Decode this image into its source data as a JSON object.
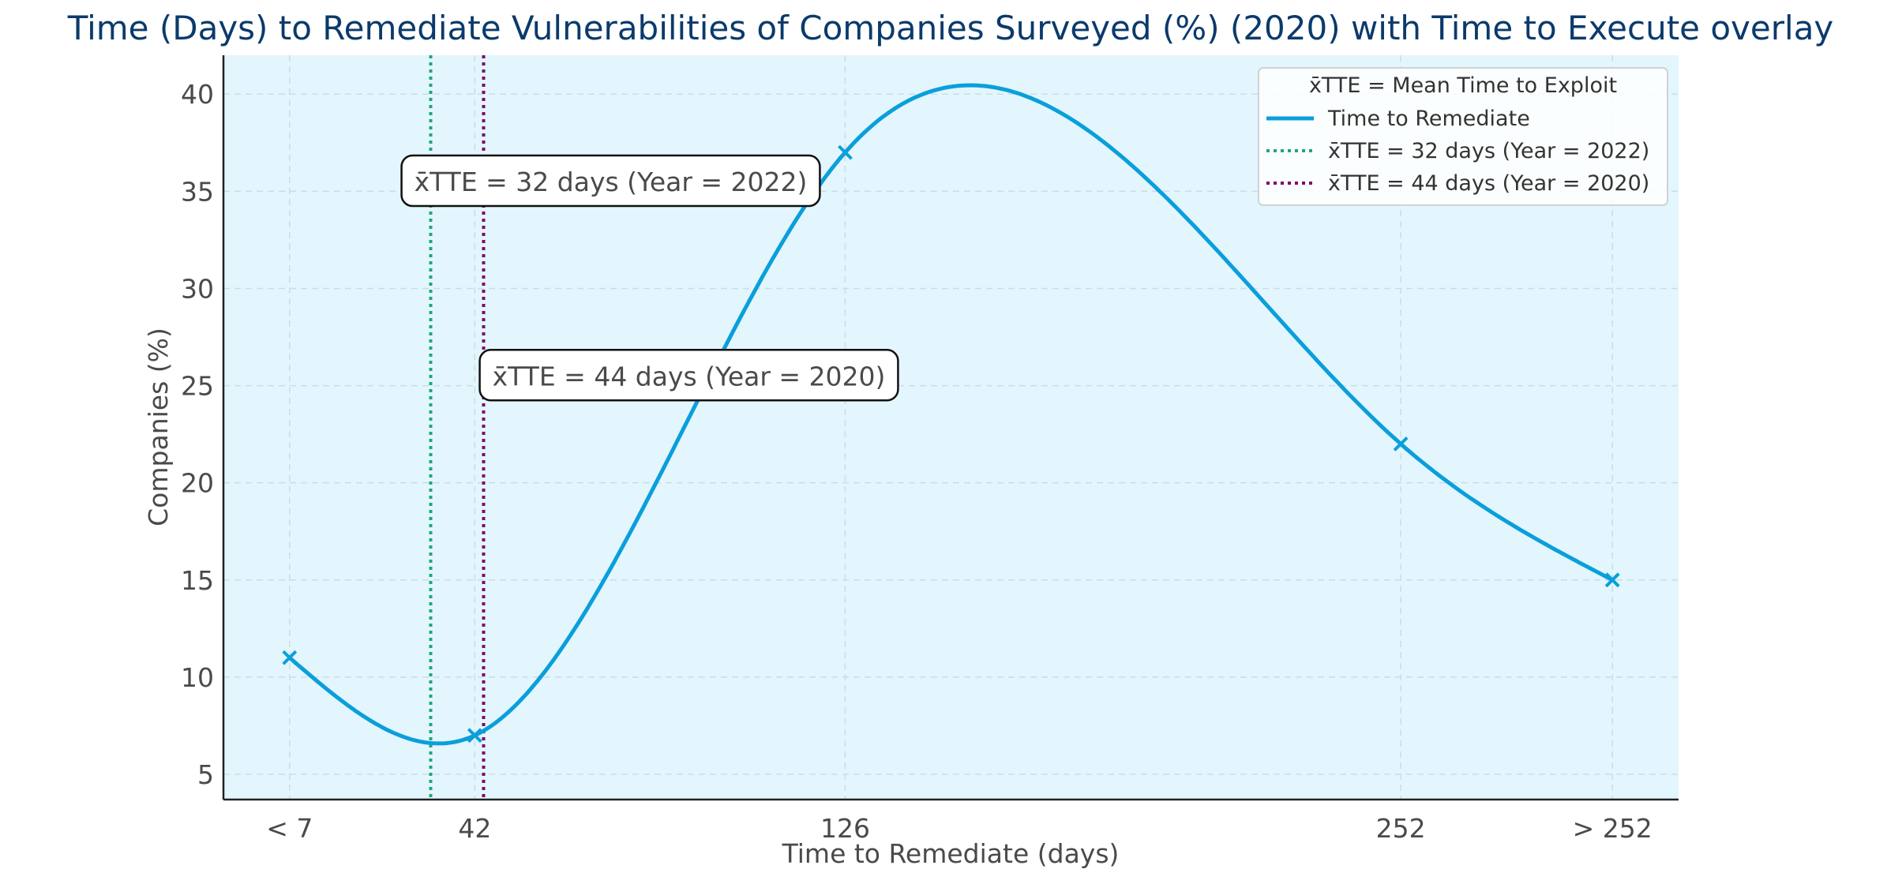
{
  "chart_data": {
    "type": "line",
    "title": "Time (Days) to Remediate Vulnerabilities of Companies Surveyed (%) (2020) with Time to Execute overlay",
    "xlabel": "Time to Remediate (days)",
    "ylabel": "Companies (%)",
    "x_ticks": [
      {
        "x": 0,
        "label": "< 7"
      },
      {
        "x": 42,
        "label": "42"
      },
      {
        "x": 126,
        "label": "126"
      },
      {
        "x": 252,
        "label": "252"
      },
      {
        "x": 300,
        "label": "> 252"
      }
    ],
    "xlim": [
      -15,
      315
    ],
    "ylim": [
      3.7,
      42
    ],
    "y_ticks": [
      5,
      10,
      15,
      20,
      25,
      30,
      35,
      40
    ],
    "grid": true,
    "series": [
      {
        "name": "Time to Remediate",
        "color": "#0a9fdb",
        "marker": "x",
        "x": [
          0,
          42,
          126,
          252,
          300
        ],
        "y": [
          11,
          7,
          37,
          22,
          15
        ]
      }
    ],
    "vlines": [
      {
        "x": 32,
        "label": "x̄TTE = 32 days (Year = 2022)",
        "color": "#21a67a",
        "annotation_y": 35.5
      },
      {
        "x": 44,
        "label": "x̄TTE = 44 days (Year = 2020)",
        "color": "#7a0b6e",
        "annotation_y": 25.5
      }
    ],
    "legend": {
      "title": "x̄TTE = Mean Time to Exploit",
      "placement": "top-right"
    },
    "colors": {
      "plot_background": "#e3f6fd",
      "title": "#0b3a6b",
      "text": "#4a4a4a"
    }
  }
}
